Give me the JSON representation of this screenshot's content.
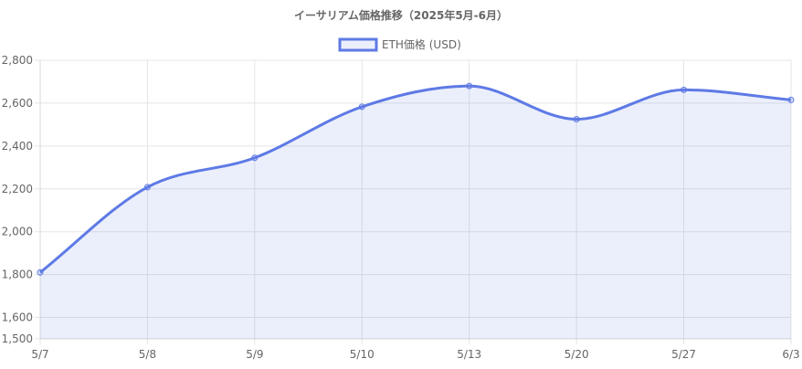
{
  "chart_data": {
    "type": "line",
    "title": "イーサリアム価格推移（2025年5月-6月）",
    "categories": [
      "5/7",
      "5/8",
      "5/9",
      "5/10",
      "5/13",
      "5/20",
      "5/27",
      "6/3"
    ],
    "series": [
      {
        "name": "ETH価格 (USD)",
        "values": [
          1810,
          2208,
          2345,
          2583,
          2680,
          2525,
          2662,
          2615
        ],
        "color": "#5e7ae5",
        "fill": "rgba(94,122,229,0.12)"
      }
    ],
    "y_ticks": [
      "1,500",
      "1,600",
      "1,800",
      "2,000",
      "2,200",
      "2,400",
      "2,600",
      "2,800"
    ],
    "ylim": [
      1500,
      2800
    ],
    "grid": true,
    "legend_position": "top"
  }
}
